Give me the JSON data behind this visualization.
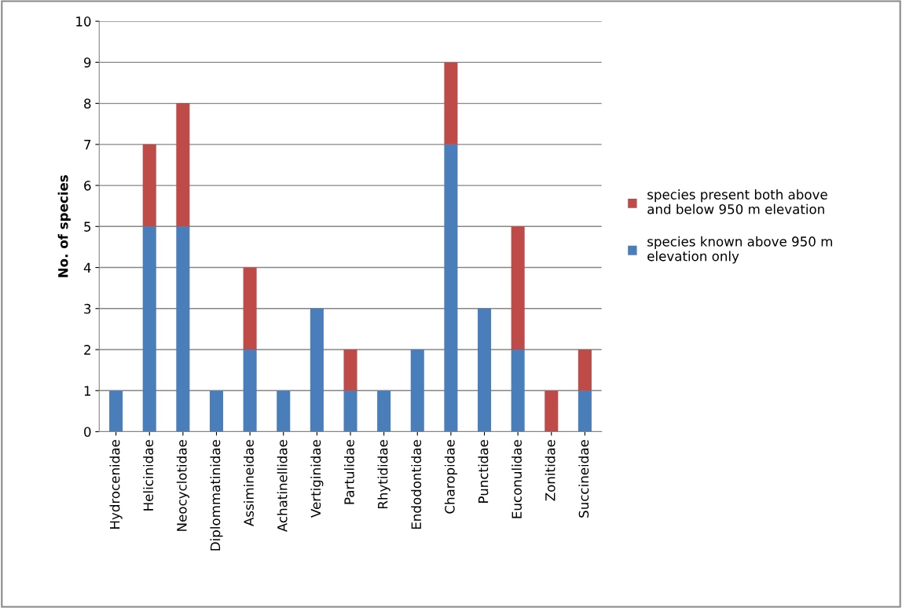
{
  "chart_data": {
    "type": "bar",
    "stacked": true,
    "ylabel": "No. of species",
    "categories": [
      "Hydrocenidae",
      "Helicinidae",
      "Neocyclotidae",
      "Diplommatinidae",
      "Assimineidae",
      "Achatinellidae",
      "Vertiginidae",
      "Partulidae",
      "Rhytididae",
      "Endodontidae",
      "Charopidae",
      "Punctidae",
      "Euconulidae",
      "Zonitidae",
      "Succineidae"
    ],
    "series": [
      {
        "name": "species known above 950 m elevation only",
        "color": "#4a7ebb",
        "values": [
          1,
          5,
          5,
          1,
          2,
          1,
          3,
          1,
          1,
          2,
          7,
          3,
          2,
          0,
          1
        ]
      },
      {
        "name": "species present both above and below 950 m elevation",
        "color": "#be4b48",
        "values": [
          0,
          2,
          3,
          0,
          2,
          0,
          0,
          1,
          0,
          0,
          2,
          0,
          3,
          1,
          1
        ]
      }
    ],
    "ylim": [
      0,
      10
    ],
    "yticks": [
      0,
      1,
      2,
      3,
      4,
      5,
      6,
      7,
      8,
      9,
      10
    ],
    "grid": "y",
    "legend": "right"
  }
}
